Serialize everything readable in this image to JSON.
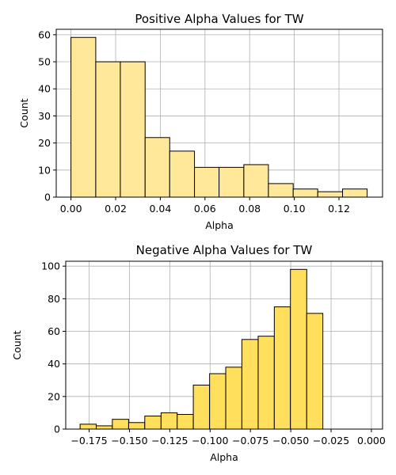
{
  "chart_data": [
    {
      "type": "bar",
      "title": "Positive Alpha Values for TW",
      "xlabel": "Alpha",
      "ylabel": "Count",
      "xlim": [
        -0.0066,
        0.1395
      ],
      "ylim": [
        0,
        62
      ],
      "grid": true,
      "bar_color": "#FFE899",
      "x_ticks": [
        0.0,
        0.02,
        0.04,
        0.06,
        0.08,
        0.1,
        0.12
      ],
      "x_tick_labels": [
        "0.00",
        "0.02",
        "0.04",
        "0.06",
        "0.08",
        "0.10",
        "0.12"
      ],
      "y_ticks": [
        0,
        10,
        20,
        30,
        40,
        50,
        60
      ],
      "y_tick_labels": [
        "0",
        "10",
        "20",
        "30",
        "40",
        "50",
        "60"
      ],
      "bins": [
        {
          "x0": 0.0,
          "x1": 0.0111,
          "count": 59
        },
        {
          "x0": 0.0111,
          "x1": 0.0221,
          "count": 50
        },
        {
          "x0": 0.0221,
          "x1": 0.0332,
          "count": 50
        },
        {
          "x0": 0.0332,
          "x1": 0.0442,
          "count": 22
        },
        {
          "x0": 0.0442,
          "x1": 0.0553,
          "count": 17
        },
        {
          "x0": 0.0553,
          "x1": 0.0663,
          "count": 11
        },
        {
          "x0": 0.0663,
          "x1": 0.0774,
          "count": 11
        },
        {
          "x0": 0.0774,
          "x1": 0.0884,
          "count": 12
        },
        {
          "x0": 0.0884,
          "x1": 0.0995,
          "count": 5
        },
        {
          "x0": 0.0995,
          "x1": 0.1105,
          "count": 3
        },
        {
          "x0": 0.1105,
          "x1": 0.1216,
          "count": 2
        },
        {
          "x0": 0.1216,
          "x1": 0.1326,
          "count": 3
        }
      ]
    },
    {
      "type": "bar",
      "title": "Negative Alpha Values for TW",
      "xlabel": "Alpha",
      "ylabel": "Count",
      "xlim": [
        -0.1895,
        0.0069
      ],
      "ylim": [
        0,
        103
      ],
      "grid": true,
      "bar_color": "#FFDF5C",
      "x_ticks": [
        -0.175,
        -0.15,
        -0.125,
        -0.1,
        -0.075,
        -0.05,
        -0.025,
        0.0
      ],
      "x_tick_labels": [
        "−0.175",
        "−0.150",
        "−0.125",
        "−0.100",
        "−0.075",
        "−0.050",
        "−0.025",
        "0.000"
      ],
      "y_ticks": [
        0,
        20,
        40,
        60,
        80,
        100
      ],
      "y_tick_labels": [
        "0",
        "20",
        "40",
        "60",
        "80",
        "100"
      ],
      "bins": [
        {
          "x0": -0.1806,
          "x1": -0.1706,
          "count": 3
        },
        {
          "x0": -0.1706,
          "x1": -0.1606,
          "count": 2
        },
        {
          "x0": -0.1606,
          "x1": -0.1505,
          "count": 6
        },
        {
          "x0": -0.1505,
          "x1": -0.1405,
          "count": 4
        },
        {
          "x0": -0.1405,
          "x1": -0.1304,
          "count": 8
        },
        {
          "x0": -0.1304,
          "x1": -0.1204,
          "count": 10
        },
        {
          "x0": -0.1204,
          "x1": -0.1104,
          "count": 9
        },
        {
          "x0": -0.1104,
          "x1": -0.1003,
          "count": 27
        },
        {
          "x0": -0.1003,
          "x1": -0.0903,
          "count": 34
        },
        {
          "x0": -0.0903,
          "x1": -0.0803,
          "count": 38
        },
        {
          "x0": -0.0803,
          "x1": -0.0702,
          "count": 55
        },
        {
          "x0": -0.0702,
          "x1": -0.0602,
          "count": 57
        },
        {
          "x0": -0.0602,
          "x1": -0.0502,
          "count": 75
        },
        {
          "x0": -0.0502,
          "x1": -0.0401,
          "count": 98
        },
        {
          "x0": -0.0401,
          "x1": -0.0301,
          "count": 71
        }
      ]
    }
  ]
}
